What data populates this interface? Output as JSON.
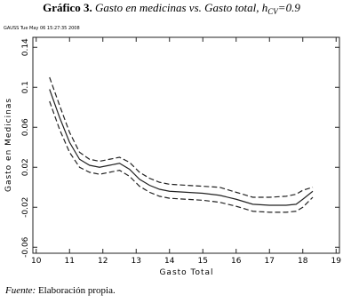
{
  "chart_data": {
    "type": "line",
    "title_prefix": "Gráfico 3.",
    "title": "Gasto en medicinas vs. Gasto total, h",
    "title_subscript": "CV",
    "title_suffix": "=0.9",
    "annotation": "GAUSS   Tue May 06 15:27:35 2008",
    "x_label": "Gasto Total",
    "y_label": "Gasto en Medicinas",
    "x": [
      10.4,
      10.7,
      11,
      11.3,
      11.6,
      11.9,
      12.2,
      12.5,
      12.8,
      13.1,
      13.4,
      13.7,
      14,
      14.5,
      15,
      15.5,
      16,
      16.5,
      17,
      17.5,
      17.8,
      18,
      18.3
    ],
    "series": [
      {
        "color": "#222222",
        "style": "solid",
        "values": [
          0.098,
          0.07,
          0.045,
          0.028,
          0.022,
          0.02,
          0.022,
          0.024,
          0.018,
          0.008,
          0.002,
          -0.002,
          -0.004,
          -0.005,
          -0.006,
          -0.008,
          -0.012,
          -0.017,
          -0.018,
          -0.018,
          -0.017,
          -0.012,
          -0.004
        ]
      },
      {
        "color": "#222222",
        "style": "dashed",
        "values": [
          0.11,
          0.082,
          0.055,
          0.035,
          0.028,
          0.026,
          0.028,
          0.03,
          0.025,
          0.015,
          0.009,
          0.005,
          0.003,
          0.002,
          0.001,
          0,
          -0.005,
          -0.01,
          -0.01,
          -0.009,
          -0.007,
          -0.003,
          0
        ]
      },
      {
        "color": "#222222",
        "style": "dashed",
        "values": [
          0.086,
          0.058,
          0.035,
          0.02,
          0.015,
          0.013,
          0.015,
          0.017,
          0.011,
          0.001,
          -0.005,
          -0.009,
          -0.011,
          -0.012,
          -0.013,
          -0.015,
          -0.019,
          -0.024,
          -0.025,
          -0.025,
          -0.024,
          -0.02,
          -0.01
        ]
      }
    ],
    "xlim": [
      9.9,
      19.1
    ],
    "ylim": [
      -0.066,
      0.15
    ],
    "xticks": [
      10,
      11,
      12,
      13,
      14,
      15,
      16,
      17,
      18,
      19
    ],
    "yticks": [
      -0.06,
      -0.02,
      0.02,
      0.06,
      0.1,
      0.14
    ],
    "grid": false
  },
  "footnote": {
    "label": "Fuente:",
    "text": "Elaboración propia."
  }
}
